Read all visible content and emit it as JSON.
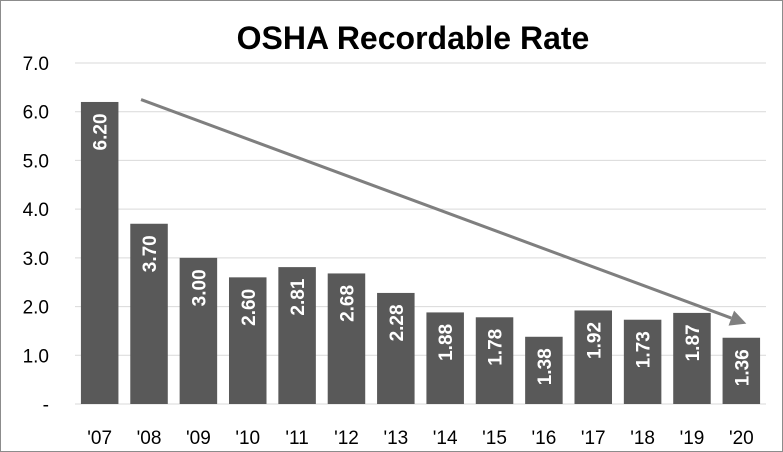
{
  "chart_data": {
    "type": "bar",
    "title": "OSHA Recordable Rate",
    "xlabel": "",
    "ylabel": "",
    "categories": [
      "'07",
      "'08",
      "'09",
      "'10",
      "'11",
      "'12",
      "'13",
      "'14",
      "'15",
      "'16",
      "'17",
      "'18",
      "'19",
      "'20"
    ],
    "values": [
      6.2,
      3.7,
      3.0,
      2.6,
      2.81,
      2.68,
      2.28,
      1.88,
      1.78,
      1.38,
      1.92,
      1.73,
      1.87,
      1.36
    ],
    "value_labels": [
      "6.20",
      "3.70",
      "3.00",
      "2.60",
      "2.81",
      "2.68",
      "2.28",
      "1.88",
      "1.78",
      "1.38",
      "1.92",
      "1.73",
      "1.87",
      "1.36"
    ],
    "ylim": [
      0,
      7
    ],
    "y_ticks": [
      0,
      1,
      2,
      3,
      4,
      5,
      6,
      7
    ],
    "y_tick_labels": [
      "-",
      "1.0",
      "2.0",
      "3.0",
      "4.0",
      "5.0",
      "6.0",
      "7.0"
    ],
    "grid": true,
    "legend": "none",
    "trend_arrow": {
      "from_category": "'08",
      "from_value": 6.25,
      "to_category": "'20",
      "to_value": 1.65
    },
    "colors": {
      "bar": "#595959",
      "grid": "#d9d9d9",
      "arrow": "#7f7f7f",
      "label": "#ffffff"
    }
  }
}
